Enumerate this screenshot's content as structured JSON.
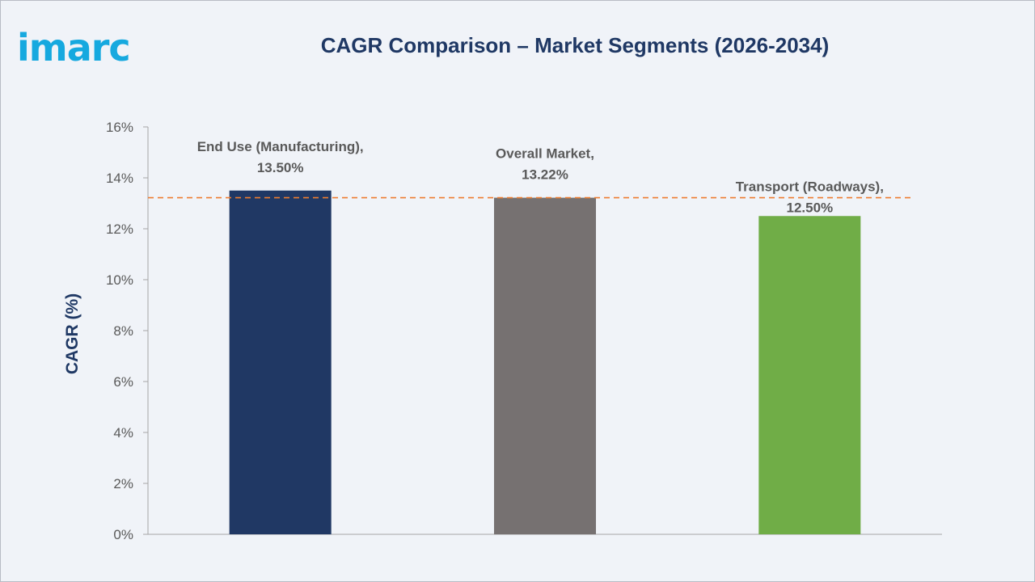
{
  "brand": {
    "logo_text": "imarc",
    "logo_color": "#16a9df"
  },
  "chart_data": {
    "type": "bar",
    "title": "CAGR Comparison – Market Segments (2026-2034)",
    "xlabel": "",
    "ylabel": "CAGR (%)",
    "ylim": [
      0,
      16
    ],
    "yticks": [
      0,
      2,
      4,
      6,
      8,
      10,
      12,
      14,
      16
    ],
    "ytick_labels": [
      "0%",
      "2%",
      "4%",
      "6%",
      "8%",
      "10%",
      "12%",
      "14%",
      "16%"
    ],
    "grid": false,
    "categories": [
      "End Use (Manufacturing)",
      "Overall Market",
      "Transport (Roadways)"
    ],
    "values": [
      13.5,
      13.22,
      12.5
    ],
    "data_labels": [
      [
        "End Use (Manufacturing),",
        "13.50%"
      ],
      [
        "Overall Market,",
        "13.22%"
      ],
      [
        "Transport (Roadways),",
        "12.50%"
      ]
    ],
    "colors": [
      "#203864",
      "#767171",
      "#70ad47"
    ],
    "reference_line": {
      "value": 13.22,
      "style": "dashed",
      "color": "#ed7d31"
    }
  }
}
